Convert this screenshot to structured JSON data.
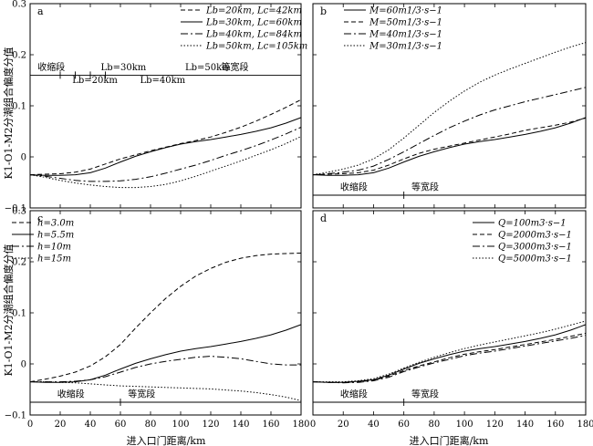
{
  "ylabel": "K1-O1-M2分潮组合偏度分值",
  "xlabel": "进入口门距离/km",
  "chart_data": [
    {
      "panel": "a",
      "type": "line",
      "xlim": [
        0,
        180
      ],
      "ylim": [
        -0.1,
        0.3
      ],
      "xticks": [
        0,
        20,
        40,
        60,
        80,
        100,
        120,
        140,
        160,
        180
      ],
      "yticks": [
        -0.1,
        0,
        0.1,
        0.2,
        0.3
      ],
      "ytick_labels": [
        "−0.1",
        "0",
        "0.1",
        "0.2",
        "0.3"
      ],
      "xtick_labels": [],
      "legend_position": "top-right",
      "series": [
        {
          "name": "Lb=20km, Lc=42km",
          "dash": "5,3",
          "x": [
            0,
            10,
            20,
            30,
            40,
            50,
            60,
            70,
            80,
            90,
            100,
            110,
            120,
            130,
            140,
            150,
            160,
            170,
            180
          ],
          "y": [
            -0.035,
            -0.034,
            -0.033,
            -0.03,
            -0.024,
            -0.014,
            -0.004,
            0.004,
            0.012,
            0.019,
            0.026,
            0.032,
            0.039,
            0.048,
            0.058,
            0.07,
            0.083,
            0.097,
            0.112
          ]
        },
        {
          "name": "Lb=30km, Lc=60km",
          "dash": "",
          "x": [
            0,
            10,
            20,
            30,
            40,
            50,
            60,
            70,
            80,
            90,
            100,
            110,
            120,
            130,
            140,
            150,
            160,
            170,
            180
          ],
          "y": [
            -0.035,
            -0.036,
            -0.036,
            -0.035,
            -0.031,
            -0.022,
            -0.01,
            0.001,
            0.01,
            0.018,
            0.025,
            0.03,
            0.034,
            0.039,
            0.044,
            0.05,
            0.057,
            0.066,
            0.077
          ]
        },
        {
          "name": "Lb=40km, Lc=84km",
          "dash": "8,3,2,3",
          "x": [
            0,
            10,
            20,
            30,
            40,
            50,
            60,
            70,
            80,
            90,
            100,
            110,
            120,
            130,
            140,
            150,
            160,
            170,
            180
          ],
          "y": [
            -0.035,
            -0.038,
            -0.042,
            -0.046,
            -0.048,
            -0.048,
            -0.047,
            -0.044,
            -0.039,
            -0.032,
            -0.024,
            -0.016,
            -0.007,
            0.003,
            0.012,
            0.022,
            0.033,
            0.045,
            0.058
          ]
        },
        {
          "name": "Lb=50km, Lc=105km",
          "dash": "1.5,2",
          "x": [
            0,
            10,
            20,
            30,
            40,
            50,
            60,
            70,
            80,
            90,
            100,
            110,
            120,
            130,
            140,
            150,
            160,
            170,
            180
          ],
          "y": [
            -0.035,
            -0.04,
            -0.046,
            -0.051,
            -0.055,
            -0.058,
            -0.06,
            -0.06,
            -0.058,
            -0.054,
            -0.047,
            -0.038,
            -0.028,
            -0.018,
            -0.008,
            0.003,
            0.014,
            0.026,
            0.04
          ]
        }
      ],
      "hline": {
        "y": 0.16
      },
      "annotations": [
        {
          "text": "收缩段",
          "x": 5,
          "y": 0.17
        },
        {
          "text": "Lb=30km",
          "x": 47,
          "y": 0.17,
          "italic_prefix": true
        },
        {
          "text": "Lb=20km",
          "x": 28,
          "y": 0.145,
          "italic_prefix": true
        },
        {
          "text": "Lb=40km",
          "x": 73,
          "y": 0.145,
          "italic_prefix": true
        },
        {
          "text": "Lb=50km",
          "x": 103,
          "y": 0.17,
          "italic_prefix": true
        },
        {
          "text": "等宽段",
          "x": 127,
          "y": 0.17
        }
      ],
      "markers": [
        {
          "x": 20,
          "y": 0.16
        },
        {
          "x": 30,
          "y": 0.16
        },
        {
          "x": 40,
          "y": 0.16
        },
        {
          "x": 50,
          "y": 0.16
        }
      ]
    },
    {
      "panel": "b",
      "type": "line",
      "xlim": [
        0,
        180
      ],
      "ylim": [
        -0.1,
        0.3
      ],
      "xticks": [
        0,
        20,
        40,
        60,
        80,
        100,
        120,
        140,
        160,
        180
      ],
      "yticks": [
        -0.1,
        0,
        0.1,
        0.2,
        0.3
      ],
      "ytick_labels": [],
      "xtick_labels": [],
      "legend_position": "top-left",
      "series": [
        {
          "name": "M=60m1/3·s−1",
          "dash": "",
          "x": [
            0,
            10,
            20,
            30,
            40,
            50,
            60,
            70,
            80,
            90,
            100,
            110,
            120,
            130,
            140,
            150,
            160,
            170,
            180
          ],
          "y": [
            -0.035,
            -0.036,
            -0.036,
            -0.035,
            -0.031,
            -0.022,
            -0.01,
            0.001,
            0.01,
            0.018,
            0.025,
            0.03,
            0.034,
            0.039,
            0.044,
            0.05,
            0.057,
            0.066,
            0.077
          ]
        },
        {
          "name": "M=50m1/3·s−1",
          "dash": "5,3",
          "x": [
            0,
            10,
            20,
            30,
            40,
            50,
            60,
            70,
            80,
            90,
            100,
            110,
            120,
            130,
            140,
            150,
            160,
            170,
            180
          ],
          "y": [
            -0.035,
            -0.034,
            -0.033,
            -0.031,
            -0.026,
            -0.016,
            -0.004,
            0.007,
            0.015,
            0.021,
            0.027,
            0.033,
            0.039,
            0.045,
            0.052,
            0.057,
            0.062,
            0.068,
            0.076
          ]
        },
        {
          "name": "M=40m1/3·s−1",
          "dash": "8,3,2,3",
          "x": [
            0,
            10,
            20,
            30,
            40,
            50,
            60,
            70,
            80,
            90,
            100,
            110,
            120,
            130,
            140,
            150,
            160,
            170,
            180
          ],
          "y": [
            -0.035,
            -0.033,
            -0.03,
            -0.026,
            -0.018,
            -0.005,
            0.01,
            0.026,
            0.042,
            0.057,
            0.07,
            0.082,
            0.092,
            0.1,
            0.108,
            0.115,
            0.122,
            0.129,
            0.136
          ]
        },
        {
          "name": "M=30m1/3·s−1",
          "dash": "1.5,2",
          "x": [
            0,
            10,
            20,
            30,
            40,
            50,
            60,
            70,
            80,
            90,
            100,
            110,
            120,
            130,
            140,
            150,
            160,
            170,
            180
          ],
          "y": [
            -0.035,
            -0.03,
            -0.024,
            -0.016,
            -0.004,
            0.014,
            0.037,
            0.062,
            0.087,
            0.109,
            0.129,
            0.146,
            0.16,
            0.172,
            0.183,
            0.194,
            0.205,
            0.215,
            0.224
          ]
        }
      ],
      "hline": {
        "y": -0.075
      },
      "annotations": [
        {
          "text": "收缩段",
          "x": 18,
          "y": -0.065
        },
        {
          "text": "等宽段",
          "x": 65,
          "y": -0.065
        }
      ],
      "markers": [
        {
          "x": 60,
          "y": -0.075
        }
      ]
    },
    {
      "panel": "c",
      "type": "line",
      "xlim": [
        0,
        180
      ],
      "ylim": [
        -0.1,
        0.3
      ],
      "xticks": [
        0,
        20,
        40,
        60,
        80,
        100,
        120,
        140,
        160,
        180
      ],
      "yticks": [
        -0.1,
        0,
        0.1,
        0.2,
        0.3
      ],
      "ytick_labels": [
        "−0.1",
        "0",
        "0.1",
        "0.2",
        "0.3"
      ],
      "xtick_labels": [
        "0",
        "20",
        "40",
        "60",
        "80",
        "100",
        "120",
        "140",
        "160",
        "180"
      ],
      "legend_position": "top-left",
      "series": [
        {
          "name": "h=3.0m",
          "dash": "5,3",
          "x": [
            0,
            10,
            20,
            30,
            40,
            50,
            60,
            70,
            80,
            90,
            100,
            110,
            120,
            130,
            140,
            150,
            160,
            170,
            180
          ],
          "y": [
            -0.035,
            -0.03,
            -0.024,
            -0.016,
            -0.004,
            0.014,
            0.038,
            0.07,
            0.1,
            0.128,
            0.152,
            0.172,
            0.187,
            0.199,
            0.207,
            0.212,
            0.215,
            0.216,
            0.217
          ]
        },
        {
          "name": "h=5.5m",
          "dash": "",
          "x": [
            0,
            10,
            20,
            30,
            40,
            50,
            60,
            70,
            80,
            90,
            100,
            110,
            120,
            130,
            140,
            150,
            160,
            170,
            180
          ],
          "y": [
            -0.035,
            -0.036,
            -0.036,
            -0.035,
            -0.031,
            -0.022,
            -0.01,
            0.001,
            0.01,
            0.018,
            0.025,
            0.03,
            0.034,
            0.039,
            0.044,
            0.05,
            0.057,
            0.066,
            0.077
          ]
        },
        {
          "name": "h=10m",
          "dash": "8,3,2,3",
          "x": [
            0,
            10,
            20,
            30,
            40,
            50,
            60,
            70,
            80,
            90,
            100,
            110,
            120,
            130,
            140,
            150,
            160,
            170,
            180
          ],
          "y": [
            -0.035,
            -0.035,
            -0.035,
            -0.034,
            -0.031,
            -0.025,
            -0.016,
            -0.007,
            0.0,
            0.005,
            0.009,
            0.013,
            0.015,
            0.013,
            0.01,
            0.005,
            0.0,
            -0.002,
            -0.002
          ]
        },
        {
          "name": "h=15m",
          "dash": "1.5,2",
          "x": [
            0,
            10,
            20,
            30,
            40,
            50,
            60,
            70,
            80,
            90,
            100,
            110,
            120,
            130,
            140,
            150,
            160,
            170,
            180
          ],
          "y": [
            -0.035,
            -0.035,
            -0.036,
            -0.037,
            -0.039,
            -0.041,
            -0.043,
            -0.044,
            -0.045,
            -0.046,
            -0.047,
            -0.048,
            -0.049,
            -0.051,
            -0.053,
            -0.056,
            -0.06,
            -0.065,
            -0.072
          ]
        }
      ],
      "hline": {
        "y": -0.075
      },
      "annotations": [
        {
          "text": "收缩段",
          "x": 18,
          "y": -0.065
        },
        {
          "text": "等宽段",
          "x": 65,
          "y": -0.065
        }
      ],
      "markers": [
        {
          "x": 60,
          "y": -0.075
        }
      ]
    },
    {
      "panel": "d",
      "type": "line",
      "xlim": [
        0,
        180
      ],
      "ylim": [
        -0.1,
        0.3
      ],
      "xticks": [
        0,
        20,
        40,
        60,
        80,
        100,
        120,
        140,
        160,
        180
      ],
      "yticks": [
        -0.1,
        0,
        0.1,
        0.2,
        0.3
      ],
      "ytick_labels": [],
      "xtick_labels": [
        "0",
        "20",
        "40",
        "60",
        "80",
        "100",
        "120",
        "140",
        "160",
        "180"
      ],
      "legend_position": "top-right",
      "series": [
        {
          "name": "Q=100m3·s−1",
          "dash": "",
          "x": [
            0,
            10,
            20,
            30,
            40,
            50,
            60,
            70,
            80,
            90,
            100,
            110,
            120,
            130,
            140,
            150,
            160,
            170,
            180
          ],
          "y": [
            -0.035,
            -0.036,
            -0.036,
            -0.034,
            -0.031,
            -0.022,
            -0.01,
            0.001,
            0.01,
            0.018,
            0.025,
            0.03,
            0.034,
            0.039,
            0.044,
            0.05,
            0.057,
            0.066,
            0.077
          ]
        },
        {
          "name": "Q=2000m3·s−1",
          "dash": "5,3",
          "x": [
            0,
            10,
            20,
            30,
            40,
            50,
            60,
            70,
            80,
            90,
            100,
            110,
            120,
            130,
            140,
            150,
            160,
            170,
            180
          ],
          "y": [
            -0.035,
            -0.036,
            -0.036,
            -0.035,
            -0.032,
            -0.024,
            -0.013,
            -0.004,
            0.004,
            0.012,
            0.019,
            0.024,
            0.028,
            0.033,
            0.038,
            0.043,
            0.048,
            0.054,
            0.06
          ]
        },
        {
          "name": "Q=3000m3·s−1",
          "dash": "8,3,2,3",
          "x": [
            0,
            10,
            20,
            30,
            40,
            50,
            60,
            70,
            80,
            90,
            100,
            110,
            120,
            130,
            140,
            150,
            160,
            170,
            180
          ],
          "y": [
            -0.035,
            -0.036,
            -0.037,
            -0.036,
            -0.033,
            -0.026,
            -0.015,
            -0.006,
            0.002,
            0.009,
            0.016,
            0.021,
            0.025,
            0.03,
            0.035,
            0.04,
            0.045,
            0.05,
            0.056
          ]
        },
        {
          "name": "Q=5000m3·s−1",
          "dash": "1.5,2",
          "x": [
            0,
            10,
            20,
            30,
            40,
            50,
            60,
            70,
            80,
            90,
            100,
            110,
            120,
            130,
            140,
            150,
            160,
            170,
            180
          ],
          "y": [
            -0.035,
            -0.035,
            -0.035,
            -0.033,
            -0.029,
            -0.02,
            -0.008,
            0.003,
            0.013,
            0.022,
            0.03,
            0.037,
            0.043,
            0.049,
            0.055,
            0.061,
            0.068,
            0.076,
            0.084
          ]
        }
      ],
      "hline": {
        "y": -0.075
      },
      "annotations": [
        {
          "text": "收缩段",
          "x": 18,
          "y": -0.065
        },
        {
          "text": "等宽段",
          "x": 65,
          "y": -0.065
        }
      ],
      "markers": [
        {
          "x": 60,
          "y": -0.075
        }
      ]
    }
  ]
}
